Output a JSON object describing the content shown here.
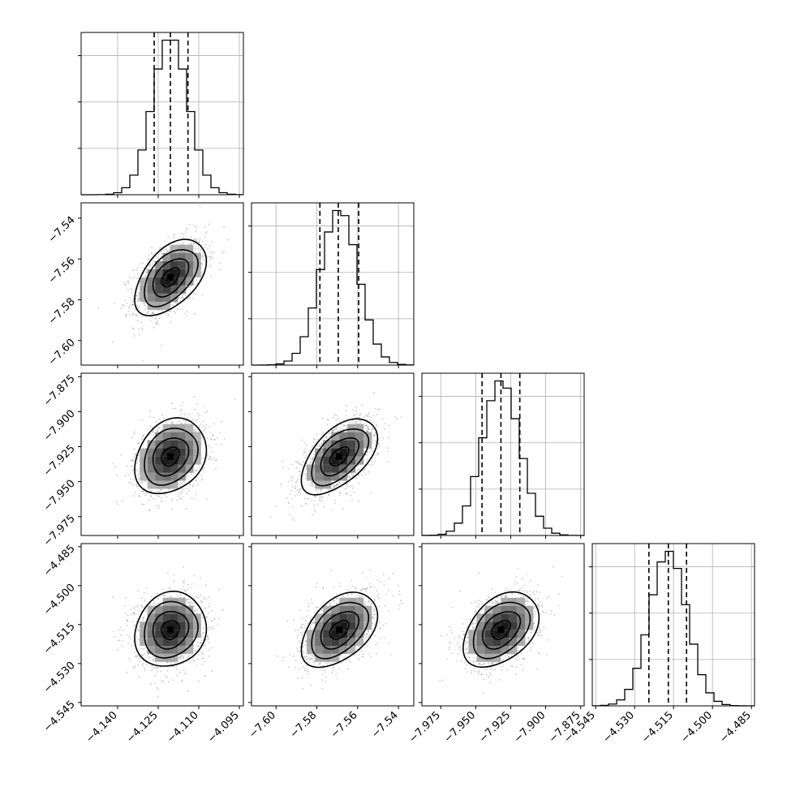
{
  "chart_data": {
    "type": "corner",
    "title": "",
    "params": [
      {
        "label": "",
        "range": [
          -4.1535,
          -4.0935
        ],
        "ticks": [
          -4.14,
          -4.125,
          -4.11,
          -4.095
        ],
        "tick_labels": [
          "−4.140",
          "−4.125",
          "−4.110",
          "−4.095"
        ],
        "quantiles": [
          -4.1265,
          -4.1205,
          -4.114
        ],
        "mean": -4.1205,
        "sd": 0.0066
      },
      {
        "label": "",
        "range": [
          -7.612,
          -7.5325
        ],
        "ticks": [
          -7.6,
          -7.58,
          -7.56,
          -7.54
        ],
        "tick_labels": [
          "−7.60",
          "−7.58",
          "−7.56",
          "−7.54"
        ],
        "quantiles": [
          -7.5785,
          -7.5695,
          -7.5595
        ],
        "mean": -7.569,
        "sd": 0.0093
      },
      {
        "label": "",
        "range": [
          -7.9885,
          -7.8725
        ],
        "ticks": [
          -7.975,
          -7.95,
          -7.925,
          -7.9,
          -7.875
        ],
        "tick_labels": [
          "−7.975",
          "−7.950",
          "−7.925",
          "−7.900",
          "−7.875"
        ],
        "quantiles": [
          -7.9455,
          -7.932,
          -7.9185
        ],
        "mean": -7.932,
        "sd": 0.0135
      },
      {
        "label": "",
        "range": [
          -4.5463,
          -4.4838
        ],
        "ticks": [
          -4.545,
          -4.53,
          -4.515,
          -4.5,
          -4.485
        ],
        "tick_labels": [
          "−4.545",
          "−4.530",
          "−4.515",
          "−4.500",
          "−4.485"
        ],
        "quantiles": [
          -4.5245,
          -4.517,
          -4.51
        ],
        "mean": -4.517,
        "sd": 0.0072
      }
    ],
    "correlations": [
      [
        1,
        0.5,
        0.25,
        0.12
      ],
      [
        0.5,
        1,
        0.55,
        0.45
      ],
      [
        0.25,
        0.55,
        1,
        0.4
      ],
      [
        0.12,
        0.45,
        0.4,
        1
      ]
    ],
    "contour_levels_sigma": [
      0.5,
      1.0,
      1.5,
      2.0
    ],
    "grid": true,
    "hist_bins": 20
  }
}
